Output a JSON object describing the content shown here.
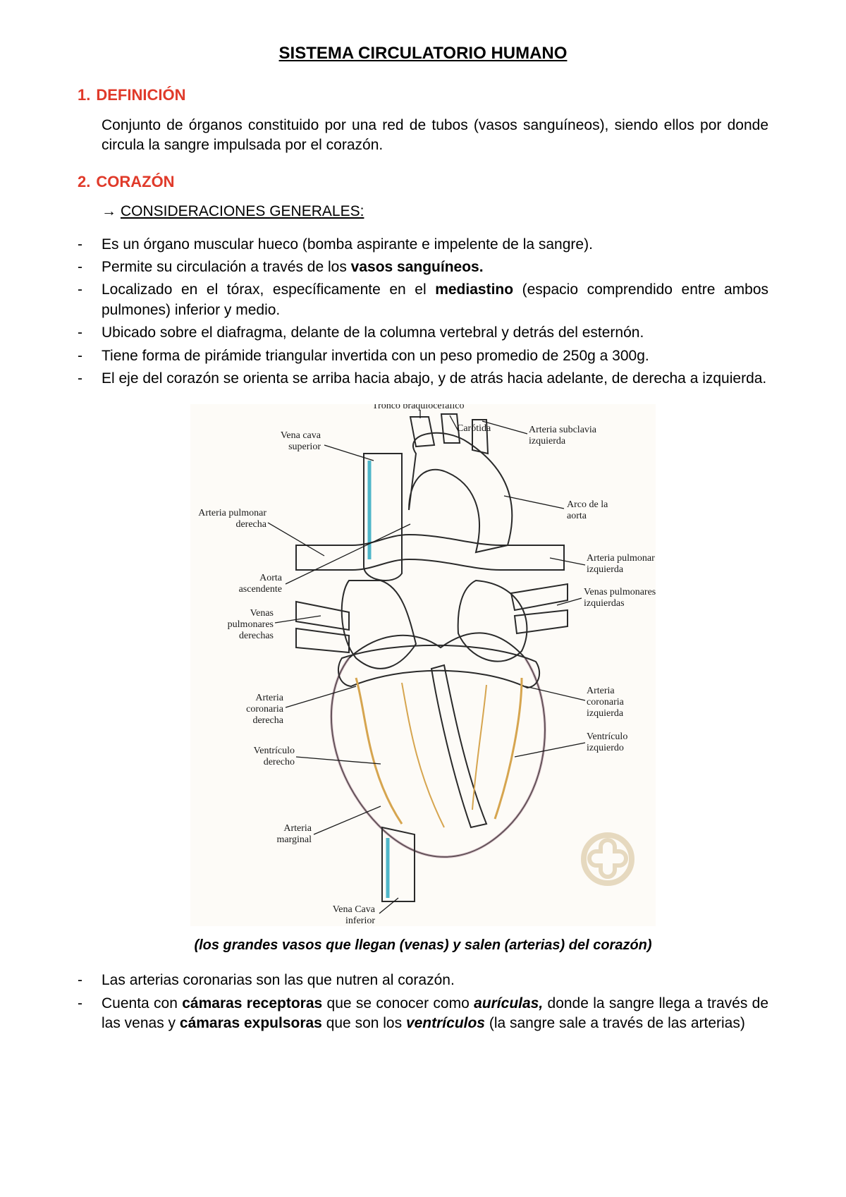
{
  "title": "SISTEMA CIRCULATORIO HUMANO",
  "sections": {
    "s1": {
      "num": "1.",
      "title": "DEFINICIÓN",
      "para": "Conjunto de órganos constituido por una red de tubos (vasos sanguíneos), siendo ellos por donde circula la sangre impulsada por el corazón."
    },
    "s2": {
      "num": "2.",
      "title": "CORAZÓN",
      "sub_arrow": "→",
      "sub": "CONSIDERACIONES GENERALES:"
    }
  },
  "bullets1": [
    {
      "pre": "Es un órgano muscular hueco (bomba aspirante e impelente de la sangre)."
    },
    {
      "pre": "Permite su circulación a través de los ",
      "bold": "vasos sanguíneos.",
      "post": ""
    },
    {
      "pre": "Localizado en el tórax, específicamente en el ",
      "bold": "mediastino",
      "post": " (espacio comprendido entre ambos pulmones) inferior y medio."
    },
    {
      "pre": "Ubicado sobre el diafragma, delante de la columna vertebral y detrás del esternón."
    },
    {
      "pre": "Tiene forma de pirámide triangular invertida con un peso promedio de 250g a 300g."
    },
    {
      "pre": "El eje del corazón se orienta se arriba hacia abajo, y de atrás hacia adelante, de derecha a izquierda."
    }
  ],
  "caption": "(los grandes vasos que llegan (venas) y salen (arterias) del corazón)",
  "bullets2": [
    {
      "pre": "Las arterias coronarias son las que nutren al corazón."
    },
    {
      "pre": "Cuenta con ",
      "bold": "cámaras receptoras",
      "mid1": " que se conocer como ",
      "boldit1": "aurículas,",
      "mid2": " donde la sangre llega a través de las venas y ",
      "bold2": "cámaras expulsoras",
      "mid3": " que son los ",
      "boldit2": "ventrículos",
      "post": " (la sangre sale a través de las arterias)"
    }
  ],
  "diagram": {
    "colors": {
      "vein": "#7ecfdf",
      "vein_dark": "#4fb6c9",
      "artery_aorta": "#e8c07a",
      "artery_aorta_dark": "#d6a54f",
      "pulm_vein": "#c77a8f",
      "pulm_vein_dark": "#a95a72",
      "myocardium": "#d8b7c2",
      "myocardium_dark": "#b88fa0",
      "fat": "#f2e28c",
      "fat_dark": "#e2cd5c",
      "bg": "#fdfbf7",
      "watermark": "#d8c39a"
    },
    "labels": {
      "tronco": [
        "Tronco braquiocefálico"
      ],
      "carotida": [
        "Carótida"
      ],
      "subclavia": [
        "Arteria subclavia",
        "izquierda"
      ],
      "vcs": [
        "Vena cava",
        "superior"
      ],
      "ap_der": [
        "Arteria pulmonar",
        "derecha"
      ],
      "arco": [
        "Arco de la",
        "aorta"
      ],
      "ap_izq": [
        "Arteria pulmonar",
        "izquierda"
      ],
      "aorta_asc": [
        "Aorta",
        "ascendente"
      ],
      "vp_izq": [
        "Venas pulmonares",
        "izquierdas"
      ],
      "vp_der": [
        "Venas",
        "pulmonares",
        "derechas"
      ],
      "ac_izq": [
        "Arteria",
        "coronaria",
        "izquierda"
      ],
      "ac_der": [
        "Arteria",
        "coronaria",
        "derecha"
      ],
      "vent_izq": [
        "Ventrículo",
        "izquierdo"
      ],
      "vent_der": [
        "Ventrículo",
        "derecho"
      ],
      "a_marg": [
        "Arteria",
        "marginal"
      ],
      "vci": [
        "Vena Cava",
        "inferior"
      ]
    }
  },
  "accent_color": "#e03a2a"
}
